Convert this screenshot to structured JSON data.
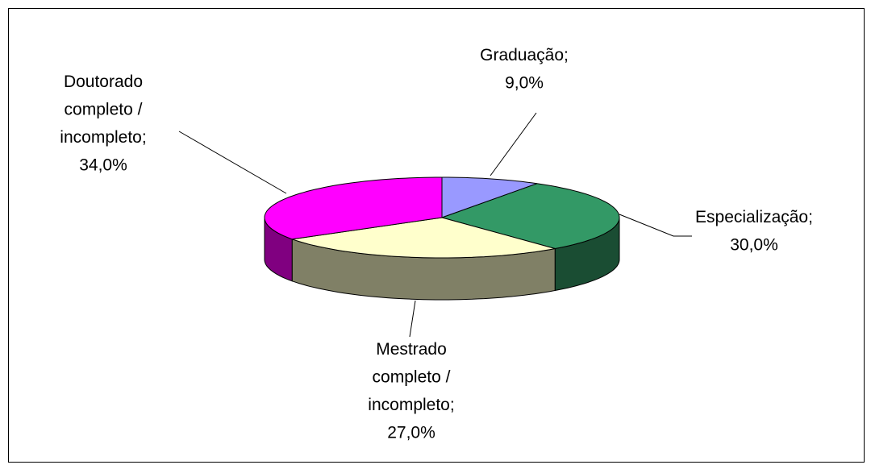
{
  "chart_data": {
    "type": "pie",
    "categories": [
      "Graduação;",
      "Especialização;",
      "Mestrado\ncompleto /\nincompleto;",
      "Doutorado\ncompleto /\nincompleto;"
    ],
    "values": [
      9.0,
      30.0,
      27.0,
      34.0
    ],
    "value_labels": [
      "9,0%",
      "30,0%",
      "27,0%",
      "34,0%"
    ],
    "colors": [
      "#9999ff",
      "#339966",
      "#ffffcc",
      "#ff00ff"
    ],
    "side_colors": [
      "#4d4d80",
      "#1a4d33",
      "#808066",
      "#800080"
    ]
  }
}
